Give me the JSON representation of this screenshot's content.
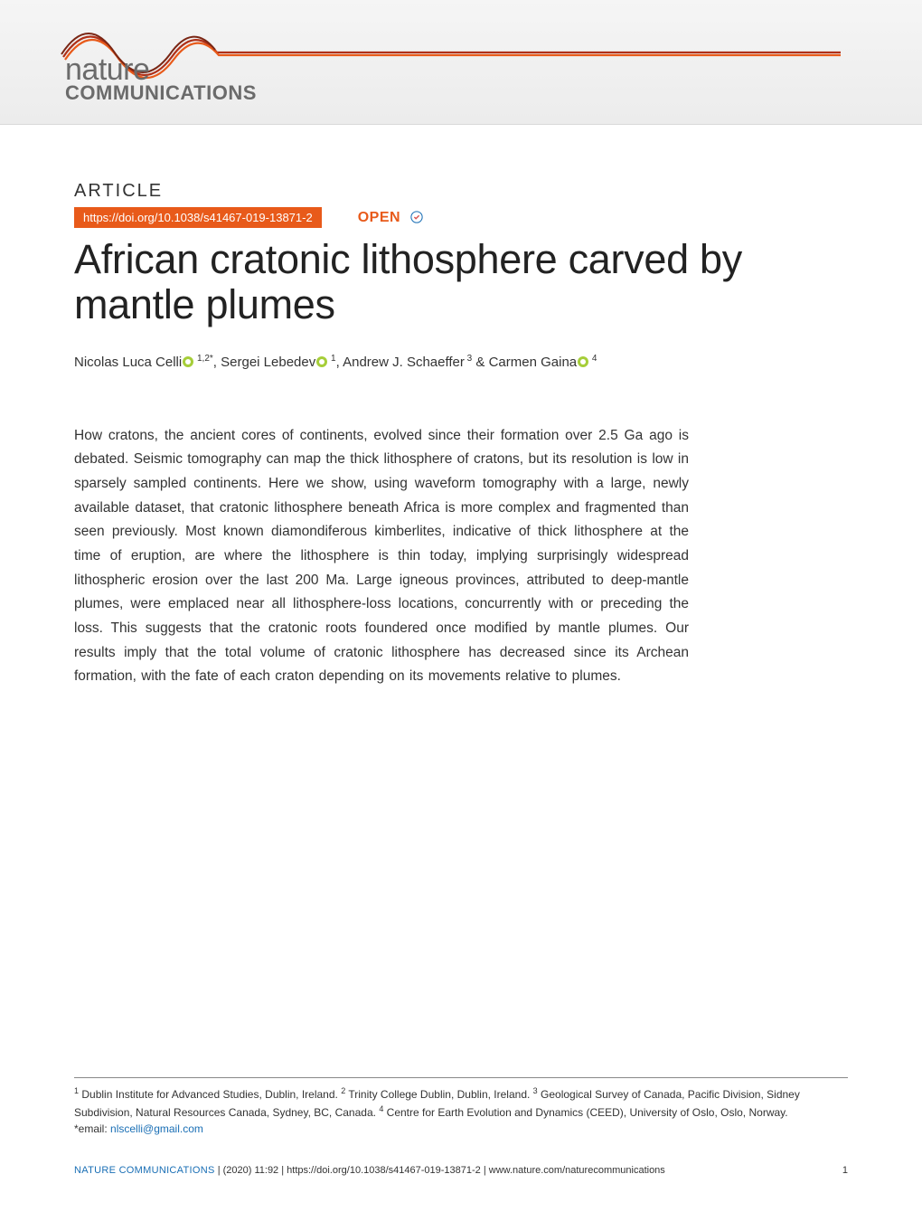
{
  "journal": {
    "logo_line1": "nature",
    "logo_line2": "COMMUNICATIONS",
    "banner_bg_top": "#f5f5f5",
    "banner_bg_bottom": "#ececec",
    "swoosh_colors": [
      "#e85a1a",
      "#b03018",
      "#7a2614"
    ]
  },
  "article": {
    "kicker": "ARTICLE",
    "doi_badge_text": "https://doi.org/10.1038/s41467-019-13871-2",
    "doi_badge_bg": "#e85a1a",
    "open_label": "OPEN",
    "open_color": "#e85a1a",
    "title": "African cratonic lithosphere carved by mantle plumes",
    "title_fontsize": 45,
    "title_fontweight": 300
  },
  "authors": [
    {
      "name": "Nicolas Luca Celli",
      "orcid": true,
      "affil": "1,2",
      "corresponding": true
    },
    {
      "name": "Sergei Lebedev",
      "orcid": true,
      "affil": "1",
      "corresponding": false
    },
    {
      "name": "Andrew J. Schaeffer",
      "orcid": false,
      "affil": "3",
      "corresponding": false
    },
    {
      "name": "Carmen Gaina",
      "orcid": true,
      "affil": "4",
      "corresponding": false
    }
  ],
  "author_separator_last": " & ",
  "author_separator": ", ",
  "abstract_text": "How cratons, the ancient cores of continents, evolved since their formation over 2.5 Ga ago is debated. Seismic tomography can map the thick lithosphere of cratons, but its resolution is low in sparsely sampled continents. Here we show, using waveform tomography with a large, newly available dataset, that cratonic lithosphere beneath Africa is more complex and fragmented than seen previously. Most known diamondiferous kimberlites, indicative of thick lithosphere at the time of eruption, are where the lithosphere is thin today, implying surprisingly widespread lithospheric erosion over the last 200 Ma. Large igneous provinces, attributed to deep-mantle plumes, were emplaced near all lithosphere-loss locations, concurrently with or preceding the loss. This suggests that the cratonic roots foundered once modified by mantle plumes. Our results imply that the total volume of cratonic lithosphere has decreased since its Archean formation, with the fate of each craton depending on its movements relative to plumes.",
  "abstract_fontsize": 15.5,
  "abstract_lineheight": 1.72,
  "affiliations": [
    {
      "n": "1",
      "text": "Dublin Institute for Advanced Studies, Dublin, Ireland."
    },
    {
      "n": "2",
      "text": "Trinity College Dublin, Dublin, Ireland."
    },
    {
      "n": "3",
      "text": "Geological Survey of Canada, Pacific Division, Sidney Subdivision, Natural Resources Canada, Sydney, BC, Canada."
    },
    {
      "n": "4",
      "text": "Centre for Earth Evolution and Dynamics (CEED), University of Oslo, Oslo, Norway."
    }
  ],
  "corresponding_prefix": "*email: ",
  "corresponding_email": "nlscelli@gmail.com",
  "footer": {
    "journal_label": "NATURE COMMUNICATIONS",
    "citation": "(2020) 11:92 | https://doi.org/10.1038/s41467-019-13871-2 | www.nature.com/naturecommunications",
    "page_number": "1",
    "link_color": "#1a6fb5"
  },
  "colors": {
    "text": "#222222",
    "muted": "#6b6b6b",
    "orcid_green": "#a6ce39",
    "link_blue": "#1a6fb5"
  }
}
